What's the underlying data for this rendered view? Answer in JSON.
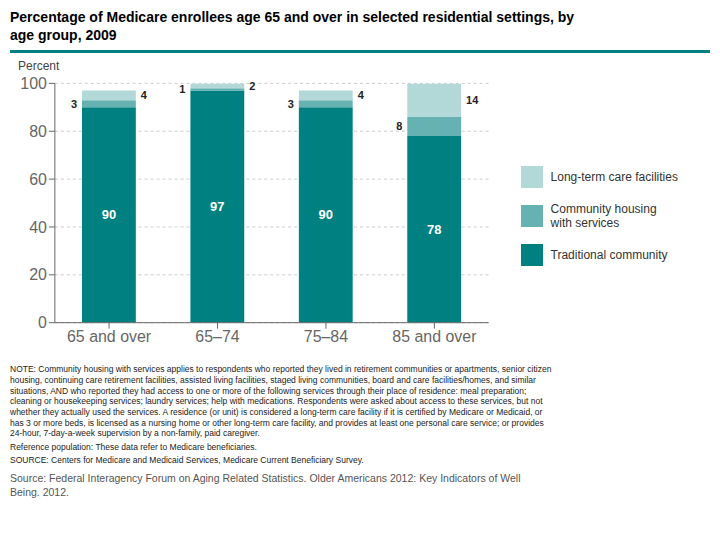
{
  "chart_data": {
    "type": "bar",
    "title": "Percentage of Medicare enrollees age 65 and over in selected residential settings, by\nage group, 2009",
    "ylabel": "Percent",
    "categories": [
      "65 and over",
      "65–74",
      "75–84",
      "85 and over"
    ],
    "series": [
      {
        "name": "Traditional community",
        "color": "#008080",
        "values": [
          90,
          97,
          90,
          78
        ]
      },
      {
        "name": "Community housing\nwith services",
        "color": "#66b2b2",
        "values": [
          3,
          1,
          3,
          8
        ]
      },
      {
        "name": "Long-term care facilities",
        "color": "#b2d8d8",
        "values": [
          4,
          2,
          4,
          14
        ]
      }
    ],
    "stacked": true,
    "data_labels": true,
    "ylim": [
      0,
      100
    ],
    "yticks": [
      0,
      20,
      40,
      60,
      80,
      100
    ],
    "grid": true,
    "legend": "right",
    "annotations": [
      "NOTE: Community housing with services applies to respondents who reported they lived in retirement communities or apartments, senior citizen\nhousing, continuing care retirement facilities, assisted living facilities, staged living communities, board and care facilities/homes, and similar\nsituations, AND who reported they had access to one or more of the following services through their place of residence: meal preparation;\ncleaning or housekeeping services; laundry services; help with medications. Respondents were asked about access to these services, but not\nwhether they actually used the services. A residence (or unit) is considered a long-term care facility if it is certified by Medicare or Medicaid, or\nhas 3 or more beds, is licensed as a nursing home or other long-term care facility, and provides at least one personal care service; or provides\n24-hour, 7-day-a-week supervision by a non-family, paid caregiver.",
      "Reference population: These data refer to Medicare beneficiaries.",
      "SOURCE: Centers for Medicare and Medicaid Services, Medicare Current Beneficiary Survey.",
      "Source: Federal Interagency Forum on Aging Related Statistics. Older Americans 2012: Key Indicators of Well\nBeing. 2012."
    ]
  }
}
